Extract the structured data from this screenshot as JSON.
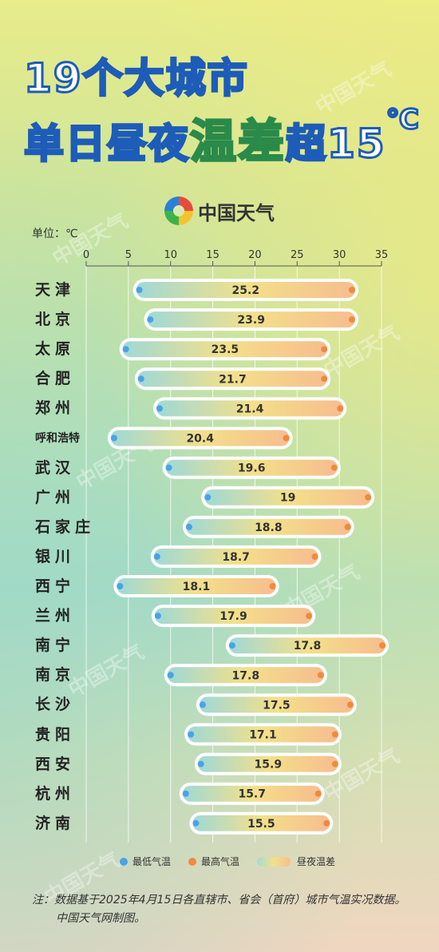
{
  "title": {
    "line1": "19个大城市",
    "line2_a": "单日昼夜",
    "line2_hl": "温差",
    "line2_b": "超15",
    "line2_unit": "℃"
  },
  "logo_text": "中国天气",
  "unit_label": "单位：℃",
  "legend": {
    "min_label": "最低气温",
    "max_label": "最高气温",
    "diff_label": "昼夜温差",
    "min_color": "#4aa3e8",
    "max_color": "#f08a3e"
  },
  "note": {
    "line1": "注：数据基于2025年4月15日各直辖市、省会（首府）城市气温实况数据。",
    "line2": "中国天气网制图。"
  },
  "watermark": "中国天气",
  "chart_data": {
    "type": "bar",
    "xlim": [
      0,
      35
    ],
    "xticks": [
      0,
      5,
      10,
      15,
      20,
      25,
      30,
      35
    ],
    "categories": [
      "天津",
      "北京",
      "太原",
      "合肥",
      "郑州",
      "呼和浩特",
      "武汉",
      "广州",
      "石家庄",
      "银川",
      "西宁",
      "兰州",
      "南宁",
      "南京",
      "长沙",
      "贵阳",
      "西安",
      "杭州",
      "济南"
    ],
    "min": [
      6.3,
      7.6,
      4.7,
      6.5,
      8.7,
      3.3,
      9.8,
      14.4,
      12.2,
      8.4,
      4.0,
      8.5,
      17.3,
      10.0,
      13.8,
      12.4,
      13.6,
      11.8,
      13.0
    ],
    "max": [
      31.5,
      31.5,
      28.2,
      28.2,
      30.1,
      23.7,
      29.4,
      33.4,
      31.0,
      27.1,
      22.1,
      26.4,
      35.1,
      27.8,
      31.3,
      29.5,
      29.5,
      27.5,
      28.5
    ],
    "diff": [
      "25.2",
      "23.9",
      "23.5",
      "21.7",
      "21.4",
      "20.4",
      "19.6",
      "19",
      "18.8",
      "18.7",
      "18.1",
      "17.9",
      "17.8",
      "17.8",
      "17.5",
      "17.1",
      "15.9",
      "15.7",
      "15.5"
    ]
  }
}
